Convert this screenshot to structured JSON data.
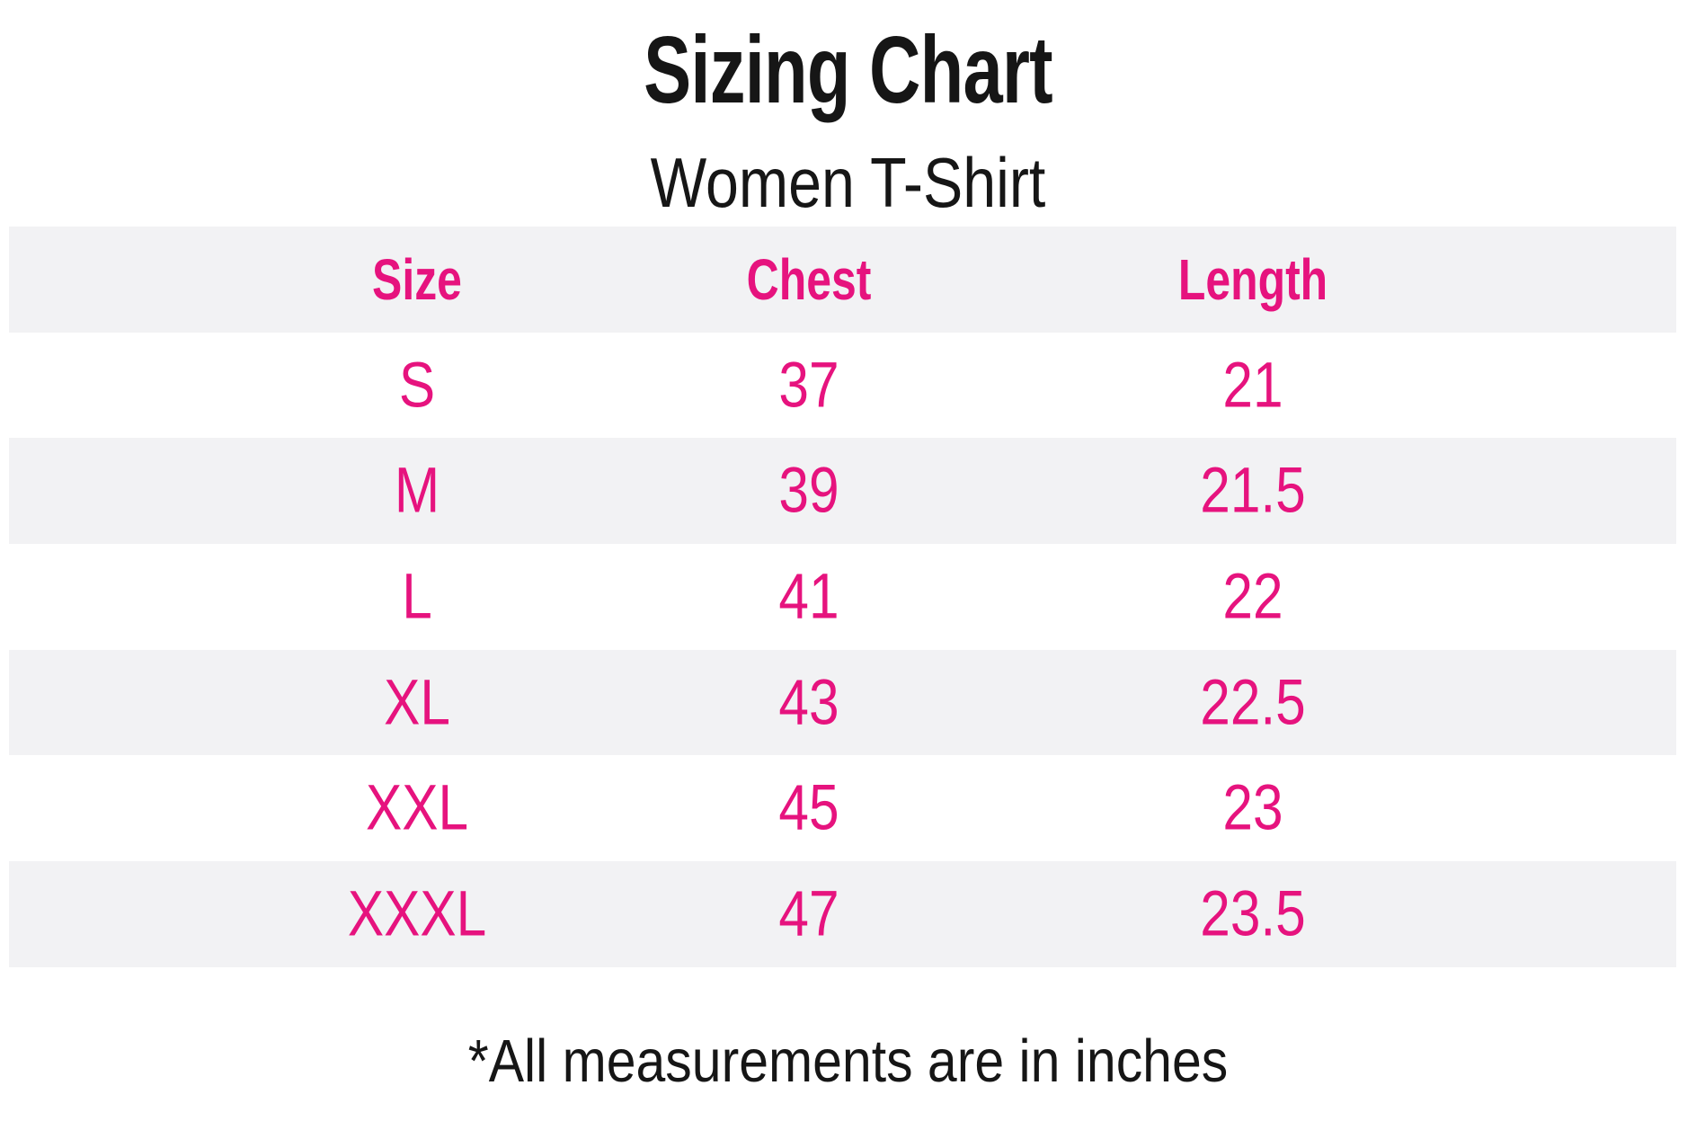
{
  "page": {
    "title": "Sizing Chart",
    "subtitle": "Women T-Shirt",
    "footnote": "*All measurements are in inches"
  },
  "colors": {
    "accent_pink": "#e6137e",
    "row_stripe": "#f2f2f4",
    "text_black": "#161616",
    "background": "#ffffff"
  },
  "table": {
    "columns": [
      "Size",
      "Chest",
      "Length"
    ],
    "rows": [
      [
        "S",
        "37",
        "21"
      ],
      [
        "M",
        "39",
        "21.5"
      ],
      [
        "L",
        "41",
        "22"
      ],
      [
        "XL",
        "43",
        "22.5"
      ],
      [
        "XXL",
        "45",
        "23"
      ],
      [
        "XXXL",
        "47",
        "23.5"
      ]
    ]
  },
  "chart_data": {
    "type": "table",
    "title": "Sizing Chart",
    "subtitle": "Women T-Shirt",
    "columns": [
      "Size",
      "Chest",
      "Length"
    ],
    "rows": [
      {
        "size": "S",
        "chest": 37,
        "length": 21
      },
      {
        "size": "M",
        "chest": 39,
        "length": 21.5
      },
      {
        "size": "L",
        "chest": 41,
        "length": 22
      },
      {
        "size": "XL",
        "chest": 43,
        "length": 22.5
      },
      {
        "size": "XXL",
        "chest": 45,
        "length": 23
      },
      {
        "size": "XXXL",
        "chest": 47,
        "length": 23.5
      }
    ],
    "units": "inches",
    "note": "*All measurements are in inches",
    "layout": {
      "striped_rows": [
        "header",
        "M",
        "XL",
        "XXXL"
      ],
      "stripe_color": "#f2f2f4",
      "text_color": "#e6137e"
    }
  }
}
